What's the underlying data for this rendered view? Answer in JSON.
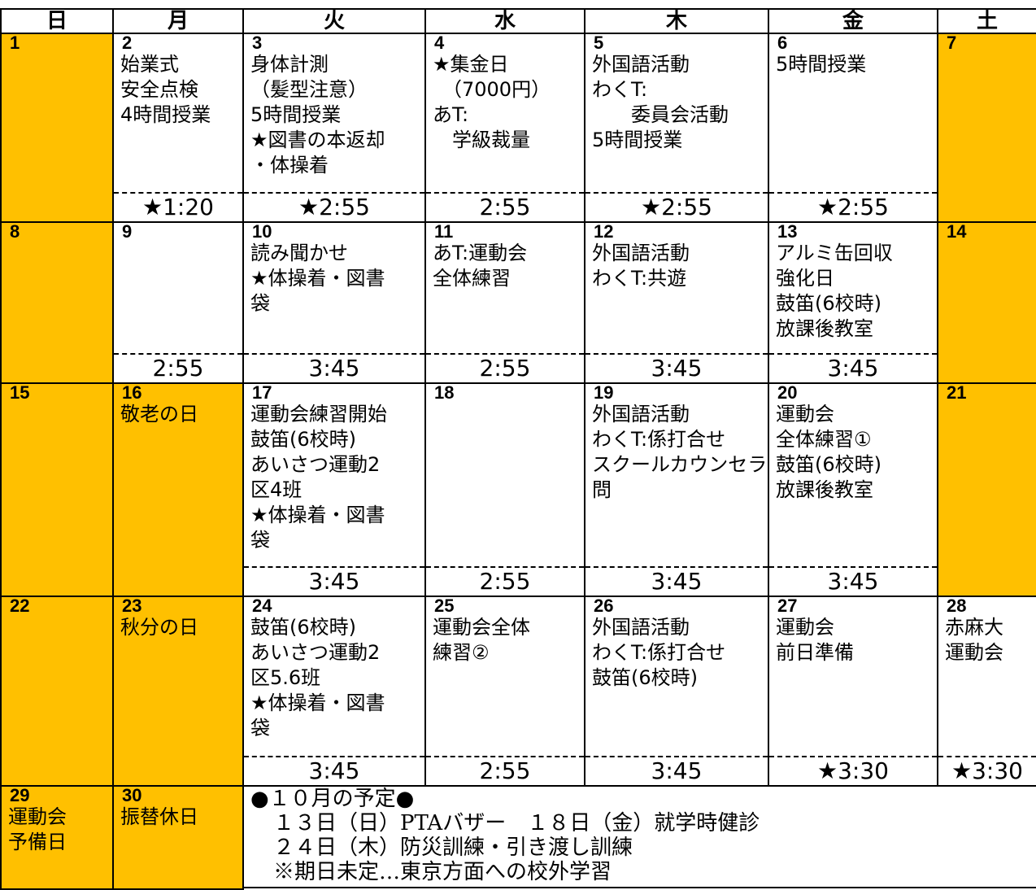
{
  "header": [
    "日",
    "月",
    "火",
    "水",
    "木",
    "金",
    "土"
  ],
  "weeks": [
    [
      {
        "day": "1",
        "holiday": true
      },
      {
        "day": "2",
        "lines": [
          "始業式",
          "安全点検",
          "4時間授業"
        ],
        "time": "★1:20"
      },
      {
        "day": "3",
        "lines": [
          "身体計測",
          "（髪型注意）",
          "5時間授業",
          "★図書の本返却",
          "・体操着"
        ],
        "time": "★2:55"
      },
      {
        "day": "4",
        "lines": [
          "★集金日",
          "　（7000円）",
          "あT:",
          "　学級裁量"
        ],
        "time": "2:55"
      },
      {
        "day": "5",
        "lines": [
          "外国語活動",
          "わくT:",
          "　　委員会活動",
          "5時間授業"
        ],
        "time": "★2:55"
      },
      {
        "day": "6",
        "lines": [
          "5時間授業"
        ],
        "time": "★2:55"
      },
      {
        "day": "7",
        "holiday": true
      }
    ],
    [
      {
        "day": "8",
        "holiday": true
      },
      {
        "day": "9",
        "lines": [],
        "time": "2:55"
      },
      {
        "day": "10",
        "lines": [
          "読み聞かせ",
          "★体操着・図書",
          "袋"
        ],
        "time": "3:45"
      },
      {
        "day": "11",
        "lines": [
          "あT:運動会",
          "全体練習"
        ],
        "time": "2:55"
      },
      {
        "day": "12",
        "lines": [
          "外国語活動",
          "わくT:共遊"
        ],
        "time": "3:45"
      },
      {
        "day": "13",
        "lines": [
          "アルミ缶回収",
          "強化日",
          "鼓笛(6校時)",
          "放課後教室"
        ],
        "time": "3:45"
      },
      {
        "day": "14",
        "holiday": true
      }
    ],
    [
      {
        "day": "15",
        "holiday": true
      },
      {
        "day": "16",
        "holiday": true,
        "lines": [
          "敬老の日"
        ]
      },
      {
        "day": "17",
        "lines": [
          "運動会練習開始",
          "鼓笛(6校時)",
          "あいさつ運動2",
          "区4班",
          "★体操着・図書",
          "袋"
        ],
        "time": "3:45"
      },
      {
        "day": "18",
        "lines": [],
        "time": "2:55"
      },
      {
        "day": "19",
        "lines": [
          "外国語活動",
          "わくT:係打合せ",
          "スクールカウンセラー訪",
          "問"
        ],
        "time": "3:45"
      },
      {
        "day": "20",
        "lines": [
          "運動会",
          "全体練習①",
          "鼓笛(6校時)",
          "放課後教室"
        ],
        "time": "3:45"
      },
      {
        "day": "21",
        "holiday": true
      }
    ],
    [
      {
        "day": "22",
        "holiday": true
      },
      {
        "day": "23",
        "holiday": true,
        "lines": [
          "秋分の日"
        ]
      },
      {
        "day": "24",
        "lines": [
          "鼓笛(6校時)",
          "あいさつ運動2",
          "区5.6班",
          "★体操着・図書",
          "袋"
        ],
        "time": "3:45"
      },
      {
        "day": "25",
        "lines": [
          "運動会全体",
          "練習②"
        ],
        "time": "2:55"
      },
      {
        "day": "26",
        "lines": [
          "外国語活動",
          "わくT:係打合せ",
          "鼓笛(6校時)"
        ],
        "time": "3:45"
      },
      {
        "day": "27",
        "lines": [
          "運動会",
          "前日準備"
        ],
        "time": "★3:30"
      },
      {
        "day": "28",
        "lines": [
          "赤麻大",
          "運動会"
        ],
        "time": "★3:30"
      }
    ],
    [
      {
        "day": "29",
        "holiday": true,
        "lines": [
          "運動会",
          "予備日"
        ]
      },
      {
        "day": "30",
        "holiday": true,
        "lines": [
          "振替休日"
        ]
      }
    ]
  ],
  "notes": {
    "title": "●１０月の予定●",
    "lines": [
      "１３日（日）PTAバザー　１８日（金）就学時健診",
      "２４日（木）防災訓練・引き渡し訓練",
      "※期日未定…東京方面への校外学習"
    ]
  }
}
